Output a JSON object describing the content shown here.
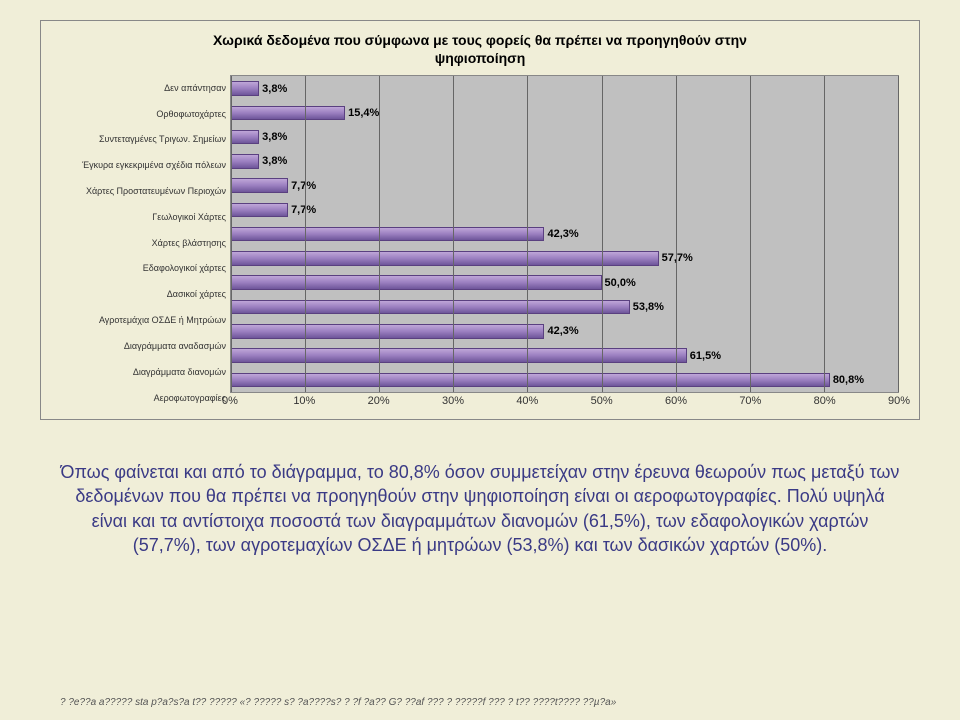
{
  "chart": {
    "type": "bar",
    "title": "Χωρικά δεδομένα που σύμφωνα με τους φορείς θα πρέπει να προηγηθούν στην\nψηφιοποίηση",
    "title_fontsize": 14,
    "categories": [
      "Δεν απάντησαν",
      "Ορθοφωτοχάρτες",
      "Συντεταγμένες Τριγων. Σημείων",
      "Έγκυρα εγκεκριμένα σχέδια πόλεων",
      "Χάρτες Προστατευμένων Περιοχών",
      "Γεωλογικοί Χάρτες",
      "Χάρτες βλάστησης",
      "Εδαφολογικοί χάρτες",
      "Δασικοί χάρτες",
      "Αγροτεμάχια ΟΣΔΕ ή Μητρώων",
      "Διαγράμματα αναδασμών",
      "Διαγράμματα διανομών",
      "Αεροφωτογραφίες"
    ],
    "values": [
      3.8,
      15.4,
      3.8,
      3.8,
      7.7,
      7.7,
      42.3,
      57.7,
      50.0,
      53.8,
      42.3,
      61.5,
      80.8
    ],
    "value_labels": [
      "3,8%",
      "15,4%",
      "3,8%",
      "3,8%",
      "7,7%",
      "7,7%",
      "42,3%",
      "57,7%",
      "50,0%",
      "53,8%",
      "42,3%",
      "61,5%",
      "80,8%"
    ],
    "x_ticks": [
      0,
      10,
      20,
      30,
      40,
      50,
      60,
      70,
      80,
      90
    ],
    "x_tick_labels": [
      "0%",
      "10%",
      "20%",
      "30%",
      "40%",
      "50%",
      "60%",
      "70%",
      "80%",
      "90%"
    ],
    "xlim": [
      0,
      90
    ],
    "bar_color": "#9b7fc0",
    "bar_border": "#5a4080",
    "plot_bg": "#c0c0c0",
    "grid_color": "#666666",
    "label_fontsize": 9
  },
  "body_text": "Όπως φαίνεται και από το διάγραμμα, το 80,8% όσον συμμετείχαν στην έρευνα θεωρούν πως μεταξύ των δεδομένων που θα πρέπει να προηγηθούν στην ψηφιοποίηση είναι οι αεροφωτογραφίες. Πολύ υψηλά είναι και τα αντίστοιχα ποσοστά των διαγραμμάτων διανομών (61,5%), των εδαφολογικών χαρτών (57,7%), των αγροτεμαχίων ΟΣΔΕ ή μητρώων (53,8%) και των δασικών χαρτών (50%).",
  "footer_text": "? ?e??a a????? sta p?a?s?a t?? ????? «? ????? s? ?a????s? ? ?f ?a?? G? ??af ??? ? ?????f ??? ? t?? ????t???? ??µ?a»"
}
